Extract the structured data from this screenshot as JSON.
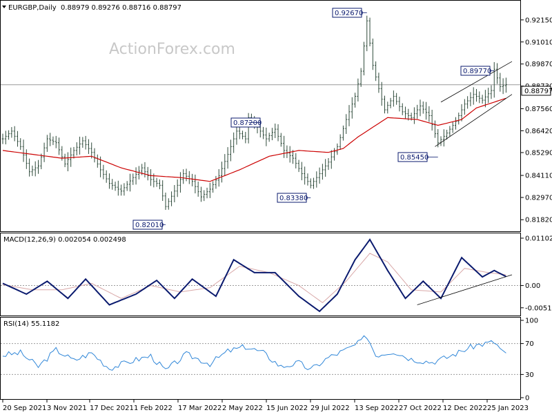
{
  "main": {
    "symbol": "EURGBP,Daily",
    "ohlc": "0.88979 0.89276 0.88716 0.88797",
    "watermark": "ActionForex.com",
    "price_ticks": [
      "0.92150",
      "0.91010",
      "0.89870",
      "0.88730",
      "0.87560",
      "0.86420",
      "0.85290",
      "0.84110",
      "0.82970",
      "0.81820"
    ],
    "current_price": "0.88797",
    "callouts": [
      {
        "label": "0.92670",
        "price": 0.9267,
        "date_index": 123
      },
      {
        "label": "0.87200",
        "price": 0.872,
        "date_index": 83
      },
      {
        "label": "0.83380",
        "price": 0.8338,
        "date_index": 104
      },
      {
        "label": "0.85450",
        "price": 0.8545,
        "date_index": 147
      },
      {
        "label": "0.82010",
        "price": 0.8201,
        "date_index": 55
      },
      {
        "label": "0.89770",
        "price": 0.8977,
        "date_index": 166
      }
    ]
  },
  "macd": {
    "label": "MACD(12,26,9) 0.002054 0.002498",
    "ticks": [
      "0.011023",
      "0.00",
      "-0.005182"
    ]
  },
  "rsi": {
    "label": "RSI(14) 55.1182",
    "ticks": [
      "100",
      "70",
      "30",
      "0"
    ]
  },
  "date_ticks": [
    "20 Sep 2021",
    "3 Nov 2021",
    "17 Dec 2021",
    "1 Feb 2022",
    "17 Mar 2022",
    "2 May 2022",
    "15 Jun 2022",
    "29 Jul 2022",
    "13 Sep 2022",
    "27 Oct 2022",
    "12 Dec 2022",
    "25 Jan 2023"
  ],
  "colors": {
    "bars": "#2e4a3a",
    "ma": "#cc0000",
    "macd": "#0a1a6e",
    "signal": "#d9a8a8",
    "rsi": "#2f86d8",
    "guides": "#999999"
  },
  "chart_data": [
    {
      "type": "line",
      "title": "EURGBP,Daily",
      "series": [
        {
          "name": "EURGBP",
          "values": [
            [
              0,
              0.86
            ],
            [
              3,
              0.864
            ],
            [
              6,
              0.856
            ],
            [
              9,
              0.843
            ],
            [
              12,
              0.846
            ],
            [
              15,
              0.86
            ],
            [
              18,
              0.858
            ],
            [
              21,
              0.847
            ],
            [
              24,
              0.854
            ],
            [
              27,
              0.859
            ],
            [
              30,
              0.853
            ],
            [
              33,
              0.844
            ],
            [
              36,
              0.837
            ],
            [
              40,
              0.833
            ],
            [
              44,
              0.84
            ],
            [
              47,
              0.845
            ],
            [
              50,
              0.839
            ],
            [
              53,
              0.836
            ],
            [
              55,
              0.825
            ],
            [
              58,
              0.833
            ],
            [
              61,
              0.842
            ],
            [
              64,
              0.838
            ],
            [
              67,
              0.83
            ],
            [
              70,
              0.834
            ],
            [
              73,
              0.841
            ],
            [
              76,
              0.852
            ],
            [
              79,
              0.864
            ],
            [
              82,
              0.86
            ],
            [
              83,
              0.871
            ],
            [
              86,
              0.866
            ],
            [
              89,
              0.86
            ],
            [
              92,
              0.865
            ],
            [
              95,
              0.854
            ],
            [
              98,
              0.85
            ],
            [
              101,
              0.842
            ],
            [
              104,
              0.836
            ],
            [
              107,
              0.842
            ],
            [
              110,
              0.848
            ],
            [
              113,
              0.856
            ],
            [
              116,
              0.87
            ],
            [
              119,
              0.882
            ],
            [
              121,
              0.895
            ],
            [
              123,
              0.921
            ],
            [
              125,
              0.898
            ],
            [
              127,
              0.886
            ],
            [
              129,
              0.875
            ],
            [
              132,
              0.882
            ],
            [
              135,
              0.874
            ],
            [
              138,
              0.871
            ],
            [
              141,
              0.877
            ],
            [
              144,
              0.872
            ],
            [
              147,
              0.858
            ],
            [
              150,
              0.863
            ],
            [
              153,
              0.869
            ],
            [
              156,
              0.878
            ],
            [
              159,
              0.883
            ],
            [
              162,
              0.88
            ],
            [
              165,
              0.885
            ],
            [
              166,
              0.896
            ],
            [
              168,
              0.887
            ],
            [
              170,
              0.888
            ]
          ]
        },
        {
          "name": "MA",
          "values": [
            [
              0,
              0.854
            ],
            [
              10,
              0.852
            ],
            [
              20,
              0.85
            ],
            [
              30,
              0.851
            ],
            [
              40,
              0.845
            ],
            [
              50,
              0.841
            ],
            [
              60,
              0.84
            ],
            [
              70,
              0.838
            ],
            [
              80,
              0.844
            ],
            [
              90,
              0.851
            ],
            [
              100,
              0.854
            ],
            [
              110,
              0.853
            ],
            [
              115,
              0.855
            ],
            [
              120,
              0.861
            ],
            [
              125,
              0.866
            ],
            [
              130,
              0.871
            ],
            [
              140,
              0.87
            ],
            [
              147,
              0.867
            ],
            [
              155,
              0.87
            ],
            [
              160,
              0.876
            ],
            [
              170,
              0.881
            ]
          ]
        }
      ]
    },
    {
      "type": "line",
      "title": "MACD(12,26,9) 0.002054 0.002498",
      "series": [
        {
          "name": "MACD",
          "values": [
            [
              0,
              0.0005
            ],
            [
              8,
              -0.002
            ],
            [
              15,
              0.001
            ],
            [
              22,
              -0.003
            ],
            [
              28,
              0.0015
            ],
            [
              36,
              -0.0045
            ],
            [
              45,
              -0.002
            ],
            [
              52,
              0.0012
            ],
            [
              58,
              -0.003
            ],
            [
              64,
              0.0015
            ],
            [
              72,
              -0.0025
            ],
            [
              78,
              0.006
            ],
            [
              85,
              0.003
            ],
            [
              92,
              0.003
            ],
            [
              100,
              -0.0025
            ],
            [
              107,
              -0.006
            ],
            [
              113,
              -0.002
            ],
            [
              119,
              0.006
            ],
            [
              124,
              0.0107
            ],
            [
              130,
              0.0035
            ],
            [
              136,
              -0.003
            ],
            [
              142,
              0.001
            ],
            [
              148,
              -0.003
            ],
            [
              155,
              0.0065
            ],
            [
              162,
              0.002
            ],
            [
              166,
              0.0035
            ],
            [
              170,
              0.0021
            ]
          ]
        },
        {
          "name": "Signal",
          "values": [
            [
              0,
              0.0002
            ],
            [
              10,
              -0.001
            ],
            [
              20,
              -0.001
            ],
            [
              30,
              0.0005
            ],
            [
              40,
              -0.003
            ],
            [
              50,
              0.0
            ],
            [
              60,
              -0.0015
            ],
            [
              70,
              -0.0005
            ],
            [
              80,
              0.0045
            ],
            [
              90,
              0.003
            ],
            [
              100,
              0.0
            ],
            [
              108,
              -0.004
            ],
            [
              116,
              0.001
            ],
            [
              124,
              0.0075
            ],
            [
              130,
              0.0055
            ],
            [
              138,
              -0.001
            ],
            [
              148,
              -0.0015
            ],
            [
              156,
              0.004
            ],
            [
              164,
              0.003
            ],
            [
              170,
              0.0025
            ]
          ]
        }
      ]
    },
    {
      "type": "line",
      "title": "RSI(14) 55.1182",
      "series": [
        {
          "name": "RSI",
          "values": [
            [
              0,
              55
            ],
            [
              6,
              58
            ],
            [
              12,
              40
            ],
            [
              18,
              62
            ],
            [
              24,
              48
            ],
            [
              30,
              58
            ],
            [
              36,
              38
            ],
            [
              44,
              48
            ],
            [
              50,
              54
            ],
            [
              55,
              35
            ],
            [
              62,
              56
            ],
            [
              70,
              44
            ],
            [
              76,
              60
            ],
            [
              82,
              66
            ],
            [
              88,
              58
            ],
            [
              94,
              40
            ],
            [
              100,
              45
            ],
            [
              104,
              36
            ],
            [
              110,
              52
            ],
            [
              116,
              62
            ],
            [
              120,
              70
            ],
            [
              123,
              80
            ],
            [
              126,
              55
            ],
            [
              132,
              60
            ],
            [
              138,
              50
            ],
            [
              145,
              46
            ],
            [
              150,
              52
            ],
            [
              156,
              62
            ],
            [
              160,
              68
            ],
            [
              166,
              72
            ],
            [
              170,
              55
            ]
          ]
        }
      ]
    }
  ]
}
